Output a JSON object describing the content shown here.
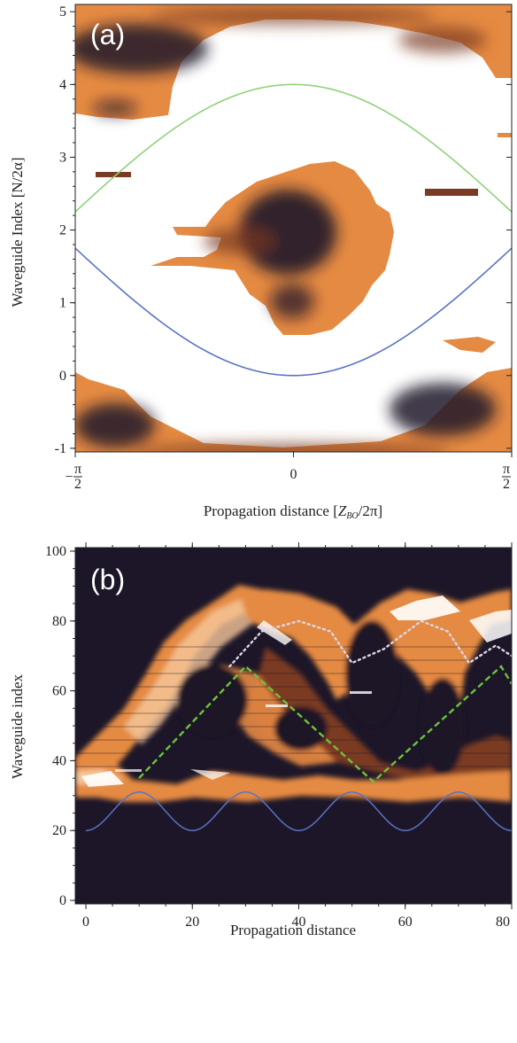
{
  "colors": {
    "dark": "#1c1628",
    "mid": "#7a3b22",
    "orange": "#e58a42",
    "light_orange": "#f6c79b",
    "white": "#ffffff",
    "green": "#8fd27a",
    "blue": "#5a73c4",
    "green_dashed": "#6cc43a",
    "dotted": "#dcd6e8"
  },
  "chart_data": [
    {
      "type": "heatmap",
      "panel_label": "(a)",
      "xlabel_main": "Propagation distance [",
      "xlabel_var": "Z",
      "xlabel_sub": "BO",
      "xlabel_tail": "/2π]",
      "ylabel": "Waveguide Index [N/2α]",
      "xlim": [
        -1.5708,
        1.5708
      ],
      "ylim": [
        -1.05,
        5.1
      ],
      "x_ticks": [
        {
          "value": -1.5708,
          "label_sign": "−",
          "label_num": "π",
          "label_den": "2"
        },
        {
          "value": 0,
          "label_sign": "",
          "label_num": "0",
          "label_den": ""
        },
        {
          "value": 1.5708,
          "label_sign": "",
          "label_num": "π",
          "label_den": "2"
        }
      ],
      "y_ticks": [
        -1,
        0,
        1,
        2,
        3,
        4,
        5
      ],
      "series": [
        {
          "color": "green",
          "formula": "y = 2.25 + 1.75*cos(x)",
          "x": [
            -1.5708,
            -1.1781,
            -0.7854,
            -0.3927,
            0,
            0.3927,
            0.7854,
            1.1781,
            1.5708
          ],
          "y": [
            2.25,
            2.92,
            3.49,
            3.87,
            4.0,
            3.87,
            3.49,
            2.92,
            2.25
          ]
        },
        {
          "color": "blue",
          "formula": "y = 1.75 - 1.75*cos(x)",
          "x": [
            -1.5708,
            -1.1781,
            -0.7854,
            -0.3927,
            0,
            0.3927,
            0.7854,
            1.1781,
            1.5708
          ],
          "y": [
            1.75,
            1.08,
            0.51,
            0.13,
            0.0,
            0.13,
            0.51,
            1.08,
            1.75
          ]
        }
      ]
    },
    {
      "type": "heatmap",
      "panel_label": "(b)",
      "xlabel": "Propagation distance",
      "ylabel": "Waveguide index",
      "xlim": [
        -2,
        80
      ],
      "ylim": [
        -1,
        101
      ],
      "x_ticks": [
        0,
        20,
        40,
        60,
        80
      ],
      "y_ticks": [
        0,
        20,
        40,
        60,
        80,
        100
      ],
      "series": [
        {
          "color": "blue",
          "style": "solid",
          "x": [
            0,
            10,
            20,
            30,
            40,
            50,
            60,
            70,
            80
          ],
          "y": [
            20,
            31,
            20,
            31,
            20,
            31,
            20,
            31,
            20
          ]
        },
        {
          "color": "green_dashed",
          "style": "dashed",
          "x": [
            10,
            30,
            54,
            78,
            80
          ],
          "y": [
            35,
            67,
            34,
            67,
            62
          ]
        },
        {
          "color": "dotted",
          "style": "dotted",
          "x": [
            27,
            33,
            40,
            46,
            50,
            56,
            63,
            68,
            72,
            77,
            80
          ],
          "y": [
            67,
            77,
            80,
            77,
            68,
            72,
            80,
            77,
            68,
            73,
            70
          ]
        }
      ]
    }
  ]
}
